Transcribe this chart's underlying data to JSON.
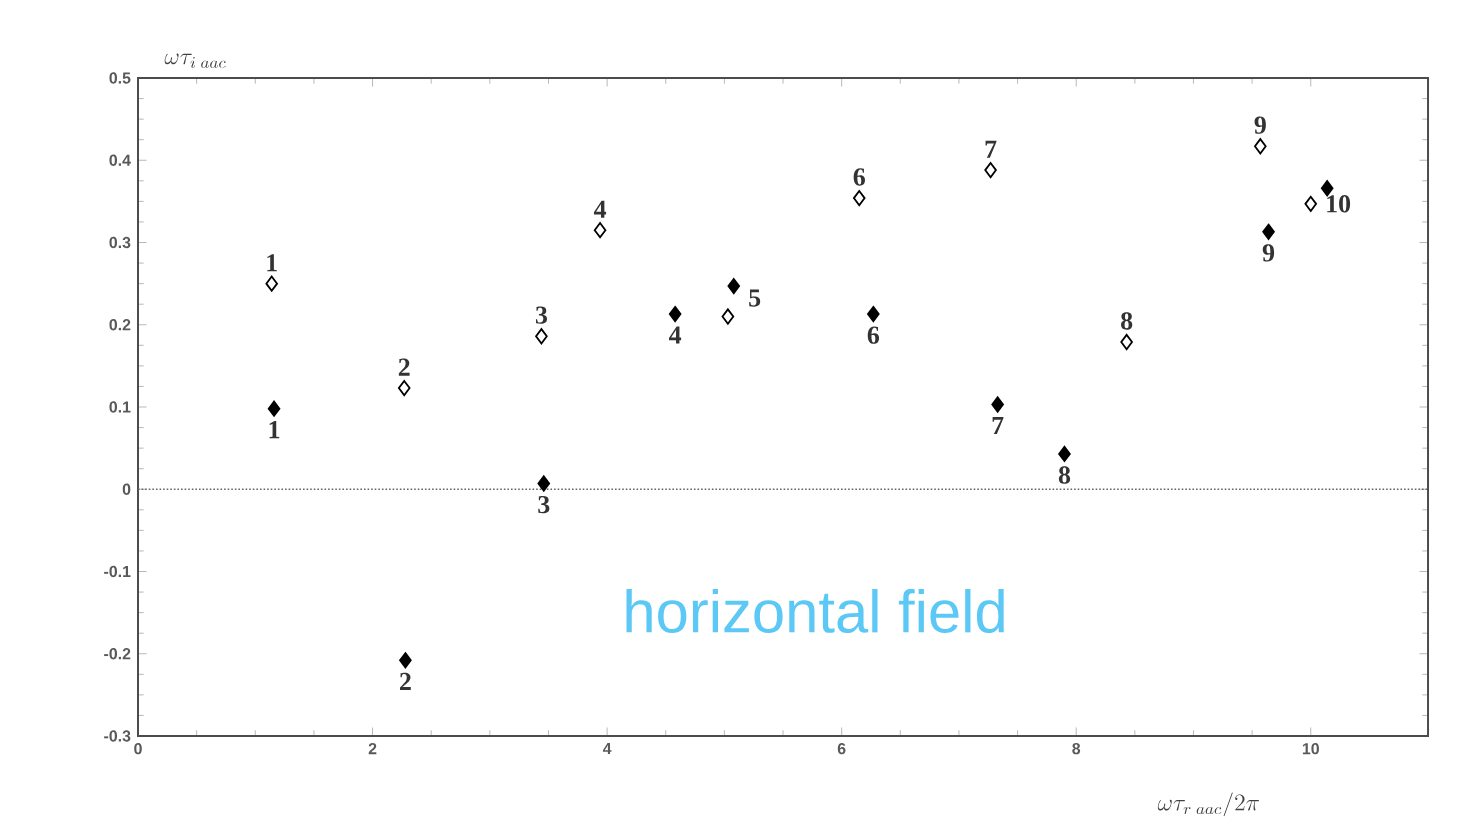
{
  "chart_data": {
    "type": "scatter",
    "xlabel": "\\omega\\tau_{r\\;aac}/2\\pi",
    "ylabel": "\\omega\\tau_{i\\;aac}",
    "xlim": [
      0,
      11
    ],
    "ylim": [
      -0.3,
      0.5
    ],
    "xticks": [
      0,
      2,
      4,
      6,
      8,
      10
    ],
    "yticks": [
      -0.3,
      -0.2,
      -0.1,
      0,
      0.1,
      0.2,
      0.3,
      0.4,
      0.5
    ],
    "grid": false,
    "series": [
      {
        "marker": "diamond",
        "color": "#ffffff",
        "x": [
          1.14,
          2.27,
          3.44,
          3.94,
          5.03,
          6.15,
          7.27,
          8.43,
          9.57,
          10.0
        ],
        "values": [
          0.25,
          0.123,
          0.186,
          0.315,
          0.21,
          0.354,
          0.388,
          0.179,
          0.417,
          0.347
        ]
      },
      {
        "marker": "diamond",
        "color": "#000000",
        "x": [
          1.16,
          2.28,
          3.46,
          4.58,
          5.08,
          6.27,
          7.33,
          7.9,
          9.64,
          10.14
        ],
        "values": [
          0.098,
          -0.208,
          0.007,
          0.213,
          0.247,
          0.213,
          0.103,
          0.043,
          0.313,
          0.366
        ]
      }
    ],
    "ref_lines": [
      {
        "axis": "y",
        "value": 0,
        "line_style": "dotted"
      }
    ],
    "annotations": [
      "horizontal field",
      {
        "text": "1",
        "x": 1.14,
        "y": 0.25
      },
      {
        "text": "2",
        "x": 2.27,
        "y": 0.123
      },
      {
        "text": "3",
        "x": 3.44,
        "y": 0.186
      },
      {
        "text": "4",
        "x": 3.94,
        "y": 0.315
      },
      {
        "text": "6",
        "x": 6.15,
        "y": 0.354
      },
      {
        "text": "7",
        "x": 7.27,
        "y": 0.388
      },
      {
        "text": "8",
        "x": 8.43,
        "y": 0.179
      },
      {
        "text": "9",
        "x": 9.57,
        "y": 0.417
      },
      {
        "text": "10",
        "x": 10.0,
        "y": 0.347
      },
      {
        "text": "1",
        "x": 1.16,
        "y": 0.098
      },
      {
        "text": "2",
        "x": 2.28,
        "y": -0.208
      },
      {
        "text": "3",
        "x": 3.46,
        "y": 0.007
      },
      {
        "text": "4",
        "x": 4.58,
        "y": 0.213
      },
      {
        "text": "5",
        "x": 5.08,
        "y": 0.247
      },
      {
        "text": "6",
        "x": 6.27,
        "y": 0.213
      },
      {
        "text": "7",
        "x": 7.33,
        "y": 0.103
      },
      {
        "text": "8",
        "x": 7.9,
        "y": 0.043
      },
      {
        "text": "9",
        "x": 9.64,
        "y": 0.313
      }
    ]
  }
}
